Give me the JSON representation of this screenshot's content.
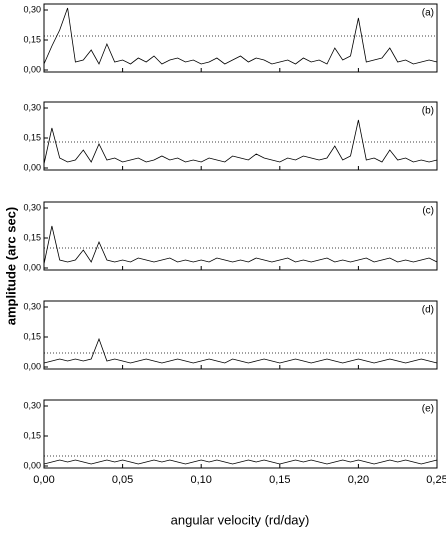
{
  "y_label": "amplitude (arc sec)",
  "x_label": "angular velocity (rd/day)",
  "chart_data": [
    {
      "type": "line",
      "label": "(a)",
      "threshold": 0.17,
      "xlim": [
        0,
        0.25
      ],
      "ylim": [
        -0.01,
        0.33
      ],
      "yticks": [
        {
          "value": 0,
          "label": "0,00"
        },
        {
          "value": 0.15,
          "label": "0,15"
        },
        {
          "value": 0.3,
          "label": "0,30"
        }
      ],
      "xticks": [
        0,
        0.05,
        0.1,
        0.15,
        0.2,
        0.25
      ],
      "x": [
        0,
        0.005,
        0.01,
        0.015,
        0.02,
        0.025,
        0.03,
        0.035,
        0.04,
        0.045,
        0.05,
        0.055,
        0.06,
        0.065,
        0.07,
        0.075,
        0.08,
        0.085,
        0.09,
        0.095,
        0.1,
        0.105,
        0.11,
        0.115,
        0.12,
        0.125,
        0.13,
        0.135,
        0.14,
        0.145,
        0.15,
        0.155,
        0.16,
        0.165,
        0.17,
        0.175,
        0.18,
        0.185,
        0.19,
        0.195,
        0.2,
        0.205,
        0.21,
        0.215,
        0.22,
        0.225,
        0.23,
        0.235,
        0.24,
        0.245,
        0.25
      ],
      "values": [
        0.03,
        0.12,
        0.2,
        0.31,
        0.04,
        0.05,
        0.1,
        0.03,
        0.13,
        0.04,
        0.05,
        0.03,
        0.06,
        0.04,
        0.07,
        0.03,
        0.05,
        0.06,
        0.04,
        0.05,
        0.03,
        0.04,
        0.06,
        0.03,
        0.05,
        0.07,
        0.04,
        0.06,
        0.05,
        0.03,
        0.04,
        0.05,
        0.03,
        0.06,
        0.04,
        0.05,
        0.03,
        0.11,
        0.05,
        0.07,
        0.26,
        0.04,
        0.05,
        0.06,
        0.11,
        0.04,
        0.05,
        0.03,
        0.04,
        0.05,
        0.04
      ]
    },
    {
      "type": "line",
      "label": "(b)",
      "threshold": 0.13,
      "xlim": [
        0,
        0.25
      ],
      "ylim": [
        -0.01,
        0.33
      ],
      "yticks": [
        {
          "value": 0,
          "label": "0,00"
        },
        {
          "value": 0.15,
          "label": "0,15"
        },
        {
          "value": 0.3,
          "label": "0,30"
        }
      ],
      "xticks": [
        0,
        0.05,
        0.1,
        0.15,
        0.2,
        0.25
      ],
      "x": [
        0,
        0.005,
        0.01,
        0.015,
        0.02,
        0.025,
        0.03,
        0.035,
        0.04,
        0.045,
        0.05,
        0.055,
        0.06,
        0.065,
        0.07,
        0.075,
        0.08,
        0.085,
        0.09,
        0.095,
        0.1,
        0.105,
        0.11,
        0.115,
        0.12,
        0.125,
        0.13,
        0.135,
        0.14,
        0.145,
        0.15,
        0.155,
        0.16,
        0.165,
        0.17,
        0.175,
        0.18,
        0.185,
        0.19,
        0.195,
        0.2,
        0.205,
        0.21,
        0.215,
        0.22,
        0.225,
        0.23,
        0.235,
        0.24,
        0.245,
        0.25
      ],
      "values": [
        0.02,
        0.2,
        0.05,
        0.03,
        0.04,
        0.09,
        0.03,
        0.12,
        0.04,
        0.05,
        0.03,
        0.04,
        0.05,
        0.03,
        0.04,
        0.06,
        0.04,
        0.05,
        0.03,
        0.04,
        0.03,
        0.05,
        0.04,
        0.03,
        0.06,
        0.05,
        0.04,
        0.07,
        0.05,
        0.04,
        0.03,
        0.05,
        0.04,
        0.06,
        0.05,
        0.04,
        0.05,
        0.11,
        0.04,
        0.06,
        0.24,
        0.04,
        0.05,
        0.03,
        0.09,
        0.04,
        0.05,
        0.03,
        0.04,
        0.03,
        0.04
      ]
    },
    {
      "type": "line",
      "label": "(c)",
      "threshold": 0.1,
      "xlim": [
        0,
        0.25
      ],
      "ylim": [
        -0.01,
        0.33
      ],
      "yticks": [
        {
          "value": 0,
          "label": "0,00"
        },
        {
          "value": 0.15,
          "label": "0,15"
        },
        {
          "value": 0.3,
          "label": "0,30"
        }
      ],
      "xticks": [
        0,
        0.05,
        0.1,
        0.15,
        0.2,
        0.25
      ],
      "x": [
        0,
        0.005,
        0.01,
        0.015,
        0.02,
        0.025,
        0.03,
        0.035,
        0.04,
        0.045,
        0.05,
        0.055,
        0.06,
        0.065,
        0.07,
        0.075,
        0.08,
        0.085,
        0.09,
        0.095,
        0.1,
        0.105,
        0.11,
        0.115,
        0.12,
        0.125,
        0.13,
        0.135,
        0.14,
        0.145,
        0.15,
        0.155,
        0.16,
        0.165,
        0.17,
        0.175,
        0.18,
        0.185,
        0.19,
        0.195,
        0.2,
        0.205,
        0.21,
        0.215,
        0.22,
        0.225,
        0.23,
        0.235,
        0.24,
        0.245,
        0.25
      ],
      "values": [
        0.02,
        0.21,
        0.04,
        0.03,
        0.04,
        0.09,
        0.03,
        0.13,
        0.04,
        0.03,
        0.04,
        0.03,
        0.05,
        0.04,
        0.03,
        0.04,
        0.05,
        0.03,
        0.04,
        0.03,
        0.04,
        0.03,
        0.05,
        0.04,
        0.03,
        0.04,
        0.03,
        0.05,
        0.04,
        0.03,
        0.04,
        0.05,
        0.03,
        0.04,
        0.03,
        0.04,
        0.05,
        0.03,
        0.04,
        0.03,
        0.04,
        0.05,
        0.03,
        0.04,
        0.05,
        0.03,
        0.04,
        0.03,
        0.04,
        0.05,
        0.03
      ]
    },
    {
      "type": "line",
      "label": "(d)",
      "threshold": 0.07,
      "xlim": [
        0,
        0.25
      ],
      "ylim": [
        -0.01,
        0.33
      ],
      "yticks": [
        {
          "value": 0,
          "label": "0,00"
        },
        {
          "value": 0.15,
          "label": "0,15"
        },
        {
          "value": 0.3,
          "label": "0,30"
        }
      ],
      "xticks": [
        0,
        0.05,
        0.1,
        0.15,
        0.2,
        0.25
      ],
      "x": [
        0,
        0.005,
        0.01,
        0.015,
        0.02,
        0.025,
        0.03,
        0.035,
        0.04,
        0.045,
        0.05,
        0.055,
        0.06,
        0.065,
        0.07,
        0.075,
        0.08,
        0.085,
        0.09,
        0.095,
        0.1,
        0.105,
        0.11,
        0.115,
        0.12,
        0.125,
        0.13,
        0.135,
        0.14,
        0.145,
        0.15,
        0.155,
        0.16,
        0.165,
        0.17,
        0.175,
        0.18,
        0.185,
        0.19,
        0.195,
        0.2,
        0.205,
        0.21,
        0.215,
        0.22,
        0.225,
        0.23,
        0.235,
        0.24,
        0.245,
        0.25
      ],
      "values": [
        0.02,
        0.03,
        0.04,
        0.03,
        0.04,
        0.03,
        0.04,
        0.14,
        0.03,
        0.04,
        0.03,
        0.02,
        0.03,
        0.04,
        0.03,
        0.02,
        0.03,
        0.04,
        0.03,
        0.02,
        0.03,
        0.04,
        0.03,
        0.02,
        0.04,
        0.03,
        0.02,
        0.03,
        0.04,
        0.03,
        0.02,
        0.03,
        0.04,
        0.03,
        0.02,
        0.03,
        0.04,
        0.03,
        0.02,
        0.03,
        0.04,
        0.03,
        0.02,
        0.03,
        0.04,
        0.03,
        0.02,
        0.03,
        0.04,
        0.03,
        0.02
      ]
    },
    {
      "type": "line",
      "label": "(e)",
      "threshold": 0.05,
      "xlim": [
        0,
        0.25
      ],
      "ylim": [
        -0.01,
        0.33
      ],
      "yticks": [
        {
          "value": 0,
          "label": "0,00"
        },
        {
          "value": 0.15,
          "label": "0,15"
        },
        {
          "value": 0.3,
          "label": "0,30"
        }
      ],
      "xticks": [
        {
          "value": 0,
          "label": "0,00"
        },
        {
          "value": 0.05,
          "label": "0,05"
        },
        {
          "value": 0.1,
          "label": "0,10"
        },
        {
          "value": 0.15,
          "label": "0,15"
        },
        {
          "value": 0.2,
          "label": "0,20"
        },
        {
          "value": 0.25,
          "label": "0,25"
        }
      ],
      "x": [
        0,
        0.005,
        0.01,
        0.015,
        0.02,
        0.025,
        0.03,
        0.035,
        0.04,
        0.045,
        0.05,
        0.055,
        0.06,
        0.065,
        0.07,
        0.075,
        0.08,
        0.085,
        0.09,
        0.095,
        0.1,
        0.105,
        0.11,
        0.115,
        0.12,
        0.125,
        0.13,
        0.135,
        0.14,
        0.145,
        0.15,
        0.155,
        0.16,
        0.165,
        0.17,
        0.175,
        0.18,
        0.185,
        0.19,
        0.195,
        0.2,
        0.205,
        0.21,
        0.215,
        0.22,
        0.225,
        0.23,
        0.235,
        0.24,
        0.245,
        0.25
      ],
      "values": [
        0.01,
        0.02,
        0.03,
        0.02,
        0.03,
        0.02,
        0.01,
        0.02,
        0.03,
        0.02,
        0.03,
        0.02,
        0.01,
        0.02,
        0.03,
        0.02,
        0.03,
        0.02,
        0.01,
        0.02,
        0.03,
        0.02,
        0.03,
        0.02,
        0.01,
        0.02,
        0.03,
        0.02,
        0.03,
        0.02,
        0.01,
        0.02,
        0.03,
        0.02,
        0.03,
        0.02,
        0.01,
        0.02,
        0.03,
        0.02,
        0.03,
        0.02,
        0.01,
        0.02,
        0.03,
        0.02,
        0.03,
        0.02,
        0.01,
        0.02,
        0.03
      ]
    }
  ]
}
